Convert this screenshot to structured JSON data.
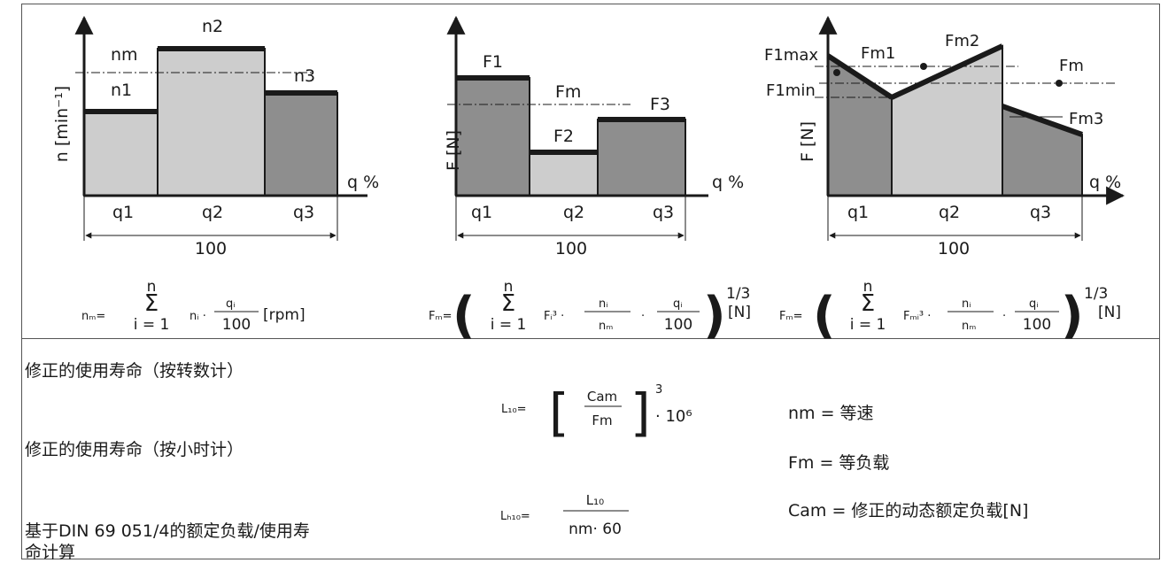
{
  "colors": {
    "light": "#cdcdcd",
    "medium": "#a7a7a7",
    "dark": "#8e8e8e",
    "line": "#1a1a1a"
  },
  "chart1": {
    "ylabel": "n [min⁻¹]",
    "xlabel": "q %",
    "total": "100",
    "q1": "q1",
    "q2": "q2",
    "q3": "q3",
    "n1": "n1",
    "n2": "n2",
    "n3": "n3",
    "nm": "nm"
  },
  "chart2": {
    "ylabel": "F [N]",
    "xlabel": "q %",
    "total": "100",
    "q1": "q1",
    "q2": "q2",
    "q3": "q3",
    "F1": "F1",
    "F2": "F2",
    "F3": "F3",
    "Fm": "Fm"
  },
  "chart3": {
    "ylabel": "F [N]",
    "xlabel": "q %",
    "total": "100",
    "q1": "q1",
    "q2": "q2",
    "q3": "q3",
    "F1max": "F1max",
    "F1min": "F1min",
    "Fm1": "Fm1",
    "Fm2": "Fm2",
    "Fm3": "Fm3",
    "Fm": "Fm"
  },
  "formulas": {
    "f1_lhs": "nₘ=",
    "f1_unit": "[rpm]",
    "f2_lhs": "Fₘ=",
    "f2_unit": "[N]",
    "f3_lhs": "Fₘ=",
    "f3_unit": "[N]",
    "exp": "1/3",
    "sum_top": "n",
    "sum_bottom": "i = 1",
    "denom": "100"
  },
  "bottom": {
    "label1": "修正的使用寿命（按转数计）",
    "label2": "修正的使用寿命（按小时计）",
    "label3_line1": "基于DIN  69  051/4的额定负载/使用寿",
    "label3_line2": "命计算",
    "l10_lhs": "L₁₀=",
    "l10_num": "Cam",
    "l10_den": "Fm",
    "l10_exp": "3",
    "l10_tail": "· 10⁶",
    "lh10_lhs": "Lₕ₁₀=",
    "lh10_num": "L₁₀",
    "lh10_den": "nm· 60",
    "legend1": "nm = 等速",
    "legend2": "Fm = 等负载",
    "legend3": "Cam = 修正的动态额定负载[N]"
  }
}
